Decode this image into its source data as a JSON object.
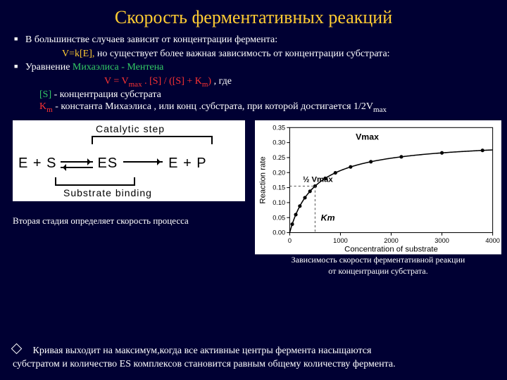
{
  "title": "Скорость ферментативных реакций",
  "b1": "В большинстве случаев зависит от концентрации фермента:",
  "eq1a": "V=k[E],",
  "eq1b": "  но существует более важная зависимость от концентрации субстрата:",
  "b2a": "Уравнение ",
  "b2b": "Михаэлиса - Ментена",
  "eq2a": "V  =  V",
  "eq2a_sub": "max",
  "eq2b": "  .  [S] / ([S]  +  K",
  "eq2b_sub": "m",
  "eq2c": ")",
  "eq2d": "           , где",
  "l3a": "[S]",
  "l3b": "  -  концентрация субстрата",
  "l4a": "K",
  "l4a_sub": "m",
  "l4b": "  -  константа Михаэлиса , или конц .субстрата, при которой достигается 1/2V",
  "l4b_sub": "max",
  "scheme": {
    "top": "Catalytic step",
    "bot": "Substrate binding",
    "ES": "E + S",
    "mid": "ES",
    "EP": "E + P"
  },
  "cap1": "Вторая стадия определяет скорость процесса",
  "cap2a": "Зависимость скорости ферментативной реакции",
  "cap2b": "от концентрации субстрата.",
  "chart": {
    "ylabel": "Reaction rate",
    "xlabel": "Concentration of substrate",
    "vmax": "Vmax",
    "hvmax": "½ Vmax",
    "km": "Km",
    "xlim": [
      0,
      4000
    ],
    "ylim": [
      0,
      0.35
    ],
    "yticks": [
      0.0,
      0.05,
      0.1,
      0.15,
      0.2,
      0.25,
      0.3,
      0.35
    ],
    "xticks": [
      0,
      1000,
      2000,
      3000,
      4000
    ],
    "curve_vmax": 0.31,
    "curve_km": 500,
    "points_x": [
      50,
      120,
      200,
      300,
      400,
      500,
      700,
      900,
      1200,
      1600,
      2200,
      3000,
      3800
    ],
    "axis_color": "#000000",
    "curve_color": "#000000",
    "dash_color": "#555555",
    "bg": "#ffffff",
    "font_size": 11
  },
  "foot1": "       Кривая выходит на максимум,когда все активные центры фермента насыщаются",
  "foot2": "субстратом и количество ES комплексов становится равным общему количеству фермента."
}
